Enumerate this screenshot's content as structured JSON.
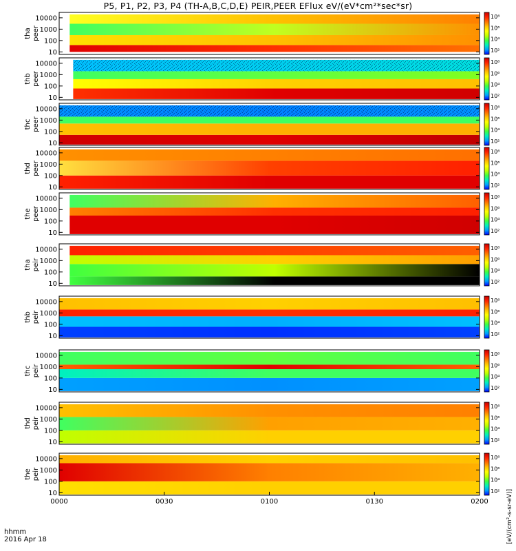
{
  "title": "P5, P1, P2, P3, P4 (TH-A,B,C,D,E) PEIR,PEER EFlux eV/(eV*cm²*sec*sr)",
  "footer": {
    "axis_label": "hhmm",
    "date": "2016 Apr 18"
  },
  "colorbar_label": "[eV/(cm²-s-sr-eV)]",
  "chart_data": {
    "type": "heatmap",
    "x_axis": {
      "label": "hhmm",
      "range": [
        "0000",
        "0200"
      ],
      "tick_labels": [
        "0000",
        "0030",
        "0100",
        "0130",
        "0200"
      ]
    },
    "y_axis": {
      "scale": "log",
      "range": [
        6,
        30000
      ],
      "tick_labels": [
        "10",
        "100",
        "1000",
        "10000"
      ]
    },
    "colorbar": {
      "scale": "log",
      "tick_labels": [
        "10²",
        "10⁴",
        "10⁶",
        "10⁸"
      ]
    },
    "colormap": [
      "#0000ff",
      "#00a0ff",
      "#00f0c0",
      "#40ff40",
      "#c0ff00",
      "#ffff00",
      "#ffc000",
      "#ff7000",
      "#ff2000",
      "#c80000"
    ],
    "panels": [
      {
        "probe": "tha",
        "species": "peer",
        "data_start": "0003",
        "bands": [
          {
            "from_energy": 10,
            "to_energy": 40,
            "colors": [
              "#e00000",
              "#ff3000",
              "#ff7000"
            ]
          },
          {
            "from_energy": 40,
            "to_energy": 300,
            "colors": [
              "#ffe000",
              "#ffc000",
              "#ff9000"
            ]
          },
          {
            "from_energy": 300,
            "to_energy": 3000,
            "colors": [
              "#40ff60",
              "#c0ff20",
              "#ff9000"
            ]
          },
          {
            "from_energy": 3000,
            "to_energy": 20000,
            "colors": [
              "#ffff20",
              "#ffc000",
              "#ff8000"
            ]
          }
        ]
      },
      {
        "probe": "thb",
        "species": "peer",
        "data_start": "0004",
        "bands": [
          {
            "from_energy": 7,
            "to_energy": 60,
            "colors": [
              "#ff3000",
              "#e00000",
              "#d00000"
            ]
          },
          {
            "from_energy": 60,
            "to_energy": 400,
            "colors": [
              "#ffff00",
              "#ffd000",
              "#ffc000"
            ]
          },
          {
            "from_energy": 400,
            "to_energy": 2000,
            "colors": [
              "#40ff60",
              "#60ff40",
              "#80ff20"
            ]
          },
          {
            "from_energy": 2000,
            "to_energy": 20000,
            "colors": [
              "#00c0ff",
              "#00d0f0",
              "#00e0e0"
            ]
          }
        ]
      },
      {
        "probe": "thc",
        "species": "peer",
        "data_start": "0000",
        "bands": [
          {
            "from_energy": 7,
            "to_energy": 50,
            "colors": [
              "#d00000",
              "#e00000",
              "#c00000"
            ]
          },
          {
            "from_energy": 50,
            "to_energy": 500,
            "colors": [
              "#ffc000",
              "#ffb000",
              "#ffb000"
            ]
          },
          {
            "from_energy": 500,
            "to_energy": 2000,
            "colors": [
              "#40ff60",
              "#40ff60",
              "#40ff60"
            ]
          },
          {
            "from_energy": 2000,
            "to_energy": 20000,
            "colors": [
              "#0090ff",
              "#0080ff",
              "#0090ff"
            ]
          }
        ]
      },
      {
        "probe": "thd",
        "species": "peer",
        "data_start": "0000",
        "bands": [
          {
            "from_energy": 7,
            "to_energy": 100,
            "colors": [
              "#ff2000",
              "#e00000",
              "#e00000"
            ]
          },
          {
            "from_energy": 100,
            "to_energy": 2000,
            "colors": [
              "#ffe040",
              "#ff4000",
              "#ff2000"
            ]
          },
          {
            "from_energy": 2000,
            "to_energy": 20000,
            "colors": [
              "#ff9000",
              "#ff8000",
              "#ff7000"
            ]
          }
        ]
      },
      {
        "probe": "the",
        "species": "peer",
        "data_start": "0003",
        "bands": [
          {
            "from_energy": 7,
            "to_energy": 300,
            "colors": [
              "#e00000",
              "#e00000",
              "#d00000"
            ]
          },
          {
            "from_energy": 300,
            "to_energy": 1500,
            "colors": [
              "#ff8000",
              "#ff3000",
              "#ff2000"
            ]
          },
          {
            "from_energy": 1500,
            "to_energy": 20000,
            "colors": [
              "#40ff60",
              "#ffb000",
              "#ff6000"
            ]
          }
        ]
      },
      {
        "probe": "tha",
        "species": "peir",
        "data_start": "0003",
        "bands": [
          {
            "from_energy": 7,
            "to_energy": 40,
            "colors": [
              "#40ff40",
              "#000000",
              "#000000"
            ]
          },
          {
            "from_energy": 40,
            "to_energy": 500,
            "colors": [
              "#40ff40",
              "#c0ff00",
              "#000000"
            ]
          },
          {
            "from_energy": 500,
            "to_energy": 3000,
            "colors": [
              "#c0ff00",
              "#ffd000",
              "#ffa000"
            ]
          },
          {
            "from_energy": 3000,
            "to_energy": 20000,
            "colors": [
              "#ff2000",
              "#ff4000",
              "#ff6000"
            ]
          }
        ]
      },
      {
        "probe": "thb",
        "species": "peir",
        "data_start": "0000",
        "bands": [
          {
            "from_energy": 7,
            "to_energy": 60,
            "colors": [
              "#0040ff",
              "#0030ff",
              "#0040ff"
            ]
          },
          {
            "from_energy": 60,
            "to_energy": 500,
            "colors": [
              "#00c0ff",
              "#00b0ff",
              "#00c0ff"
            ]
          },
          {
            "from_energy": 500,
            "to_energy": 2000,
            "colors": [
              "#ff2000",
              "#ff3000",
              "#ff2000"
            ]
          },
          {
            "from_energy": 2000,
            "to_energy": 20000,
            "colors": [
              "#ffc000",
              "#ffd000",
              "#ffc000"
            ]
          }
        ]
      },
      {
        "probe": "thc",
        "species": "peir",
        "data_start": "0000",
        "bands": [
          {
            "from_energy": 7,
            "to_energy": 100,
            "colors": [
              "#00a0ff",
              "#0090ff",
              "#00a0ff"
            ]
          },
          {
            "from_energy": 100,
            "to_energy": 600,
            "colors": [
              "#00f0c0",
              "#40ff60",
              "#40ff60"
            ]
          },
          {
            "from_energy": 600,
            "to_energy": 1500,
            "colors": [
              "#ff6000",
              "#e00000",
              "#ff6000"
            ]
          },
          {
            "from_energy": 1500,
            "to_energy": 20000,
            "colors": [
              "#40ff60",
              "#60ff40",
              "#40ff60"
            ]
          }
        ]
      },
      {
        "probe": "thd",
        "species": "peir",
        "data_start": "0000",
        "bands": [
          {
            "from_energy": 7,
            "to_energy": 100,
            "colors": [
              "#c0ff00",
              "#ffd000",
              "#ffd000"
            ]
          },
          {
            "from_energy": 100,
            "to_energy": 1500,
            "colors": [
              "#40ff60",
              "#ffa000",
              "#ffb000"
            ]
          },
          {
            "from_energy": 1500,
            "to_energy": 20000,
            "colors": [
              "#ffc000",
              "#ff9000",
              "#ff8000"
            ]
          }
        ]
      },
      {
        "probe": "the",
        "species": "peir",
        "data_start": "0000",
        "bands": [
          {
            "from_energy": 7,
            "to_energy": 100,
            "colors": [
              "#ffe000",
              "#ffd000",
              "#ffd000"
            ]
          },
          {
            "from_energy": 100,
            "to_energy": 4000,
            "colors": [
              "#e00000",
              "#ff8000",
              "#ffb000"
            ]
          },
          {
            "from_energy": 4000,
            "to_energy": 20000,
            "colors": [
              "#ffb000",
              "#ffd000",
              "#ffc000"
            ]
          }
        ]
      }
    ]
  }
}
